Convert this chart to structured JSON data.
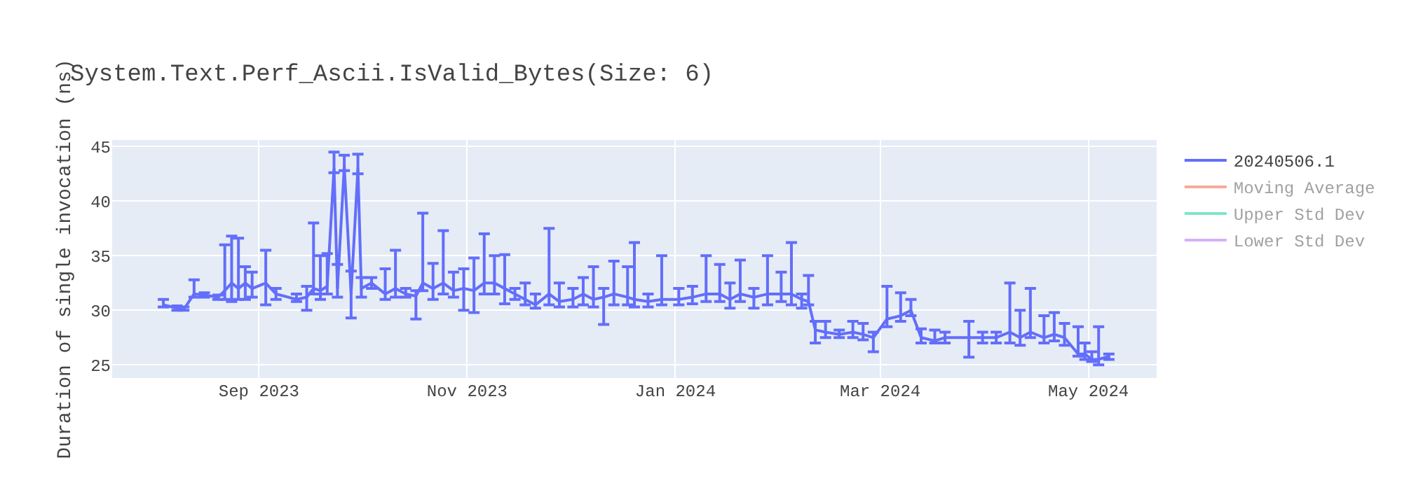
{
  "chart_data": {
    "type": "line",
    "title": "System.Text.Perf_Ascii.IsValid_Bytes(Size: 6)",
    "ylabel": "Duration of single invocation (ns)",
    "x": [
      "2023-08-04",
      "2023-08-08",
      "2023-08-10",
      "2023-08-13",
      "2023-08-16",
      "2023-08-20",
      "2023-08-22",
      "2023-08-24",
      "2023-08-26",
      "2023-08-28",
      "2023-08-30",
      "2023-09-03",
      "2023-09-06",
      "2023-09-12",
      "2023-09-15",
      "2023-09-17",
      "2023-09-19",
      "2023-09-21",
      "2023-09-23",
      "2023-09-24",
      "2023-09-26",
      "2023-09-28",
      "2023-09-30",
      "2023-10-01",
      "2023-10-04",
      "2023-10-08",
      "2023-10-11",
      "2023-10-14",
      "2023-10-17",
      "2023-10-19",
      "2023-10-22",
      "2023-10-25",
      "2023-10-28",
      "2023-10-31",
      "2023-11-03",
      "2023-11-06",
      "2023-11-09",
      "2023-11-12",
      "2023-11-15",
      "2023-11-18",
      "2023-11-21",
      "2023-11-25",
      "2023-11-28",
      "2023-12-02",
      "2023-12-05",
      "2023-12-08",
      "2023-12-11",
      "2023-12-14",
      "2023-12-18",
      "2023-12-20",
      "2023-12-24",
      "2023-12-28",
      "2024-01-02",
      "2024-01-06",
      "2024-01-10",
      "2024-01-14",
      "2024-01-17",
      "2024-01-20",
      "2024-01-24",
      "2024-01-28",
      "2024-02-01",
      "2024-02-04",
      "2024-02-07",
      "2024-02-09",
      "2024-02-11",
      "2024-02-14",
      "2024-02-18",
      "2024-02-22",
      "2024-02-25",
      "2024-02-28",
      "2024-03-03",
      "2024-03-07",
      "2024-03-10",
      "2024-03-13",
      "2024-03-17",
      "2024-03-20",
      "2024-03-27",
      "2024-03-31",
      "2024-04-04",
      "2024-04-08",
      "2024-04-11",
      "2024-04-14",
      "2024-04-18",
      "2024-04-21",
      "2024-04-24",
      "2024-04-28",
      "2024-04-30",
      "2024-05-02",
      "2024-05-04",
      "2024-05-07"
    ],
    "series": [
      {
        "name": "20240506.1",
        "color": "#636efa",
        "values": [
          30.5,
          30.2,
          30.1,
          31.5,
          31.4,
          31.2,
          31.8,
          32.5,
          32.0,
          32.5,
          32.0,
          32.5,
          31.5,
          31.0,
          31.2,
          32.0,
          31.8,
          32.2,
          43.0,
          32.0,
          43.2,
          31.5,
          43.0,
          32.0,
          32.5,
          31.5,
          32.0,
          31.5,
          31.3,
          32.5,
          32.0,
          32.5,
          31.8,
          32.0,
          31.8,
          32.5,
          32.5,
          32.0,
          31.5,
          31.0,
          30.5,
          31.5,
          30.8,
          31.0,
          31.5,
          31.0,
          31.2,
          31.5,
          31.2,
          31.0,
          30.8,
          31.0,
          31.0,
          31.2,
          31.5,
          31.5,
          31.0,
          31.5,
          31.2,
          31.5,
          31.5,
          31.5,
          31.0,
          30.8,
          28.2,
          28.0,
          27.8,
          28.0,
          27.8,
          27.5,
          29.2,
          29.5,
          30.0,
          27.5,
          27.2,
          27.5,
          27.5,
          27.5,
          27.5,
          28.0,
          27.5,
          28.0,
          27.5,
          27.8,
          27.5,
          26.0,
          26.0,
          25.5,
          25.5,
          25.8
        ],
        "errors": [
          [
            30.3,
            31.0
          ],
          [
            30.0,
            30.4
          ],
          [
            30.0,
            30.3
          ],
          [
            31.2,
            32.8
          ],
          [
            31.2,
            31.6
          ],
          [
            31.0,
            31.4
          ],
          [
            31.0,
            36.0
          ],
          [
            30.8,
            36.8
          ],
          [
            31.0,
            36.6
          ],
          [
            31.0,
            34.0
          ],
          [
            31.2,
            33.5
          ],
          [
            30.5,
            35.5
          ],
          [
            31.0,
            32.0
          ],
          [
            30.8,
            31.5
          ],
          [
            30.0,
            32.2
          ],
          [
            31.5,
            38.0
          ],
          [
            31.0,
            35.0
          ],
          [
            31.5,
            35.2
          ],
          [
            42.6,
            44.5
          ],
          [
            31.2,
            34.2
          ],
          [
            42.8,
            44.2
          ],
          [
            29.3,
            33.6
          ],
          [
            42.5,
            44.3
          ],
          [
            31.2,
            33.0
          ],
          [
            32.0,
            33.0
          ],
          [
            31.0,
            33.8
          ],
          [
            31.2,
            35.5
          ],
          [
            31.2,
            32.0
          ],
          [
            29.2,
            31.8
          ],
          [
            31.8,
            38.9
          ],
          [
            31.0,
            34.3
          ],
          [
            31.5,
            37.3
          ],
          [
            31.2,
            33.5
          ],
          [
            30.0,
            33.8
          ],
          [
            29.8,
            34.8
          ],
          [
            31.5,
            37.0
          ],
          [
            31.5,
            35.0
          ],
          [
            30.6,
            35.1
          ],
          [
            31.0,
            32.0
          ],
          [
            30.5,
            32.5
          ],
          [
            30.2,
            31.5
          ],
          [
            30.5,
            37.5
          ],
          [
            30.3,
            32.5
          ],
          [
            30.3,
            32.0
          ],
          [
            30.5,
            33.0
          ],
          [
            30.3,
            34.0
          ],
          [
            28.7,
            32.0
          ],
          [
            30.5,
            34.5
          ],
          [
            30.5,
            34.0
          ],
          [
            30.3,
            36.2
          ],
          [
            30.3,
            31.5
          ],
          [
            30.5,
            35.0
          ],
          [
            30.5,
            32.0
          ],
          [
            30.6,
            32.2
          ],
          [
            30.8,
            35.0
          ],
          [
            30.8,
            34.2
          ],
          [
            30.2,
            32.5
          ],
          [
            30.8,
            34.6
          ],
          [
            30.2,
            32.0
          ],
          [
            30.5,
            35.0
          ],
          [
            30.8,
            33.5
          ],
          [
            30.5,
            36.2
          ],
          [
            30.2,
            31.5
          ],
          [
            30.5,
            33.2
          ],
          [
            27.0,
            29.0
          ],
          [
            27.5,
            29.0
          ],
          [
            27.5,
            28.2
          ],
          [
            27.5,
            29.0
          ],
          [
            27.3,
            28.8
          ],
          [
            26.2,
            28.0
          ],
          [
            28.5,
            32.2
          ],
          [
            29.0,
            31.6
          ],
          [
            29.5,
            31.0
          ],
          [
            27.0,
            28.3
          ],
          [
            27.0,
            28.2
          ],
          [
            27.0,
            28.0
          ],
          [
            25.7,
            29.0
          ],
          [
            27.0,
            28.0
          ],
          [
            27.0,
            28.0
          ],
          [
            27.0,
            32.5
          ],
          [
            26.8,
            30.0
          ],
          [
            27.5,
            32.0
          ],
          [
            27.0,
            29.5
          ],
          [
            27.2,
            29.8
          ],
          [
            26.8,
            28.8
          ],
          [
            25.8,
            28.5
          ],
          [
            25.5,
            27.0
          ],
          [
            25.3,
            26.2
          ],
          [
            25.0,
            28.5
          ],
          [
            25.5,
            26.0
          ]
        ]
      },
      {
        "name": "Moving Average",
        "color": "#ef553b",
        "values": [
          null,
          null,
          null,
          null,
          null,
          null,
          null,
          null,
          null,
          null,
          null,
          null,
          null,
          null,
          null,
          null,
          null,
          null,
          null,
          null,
          null,
          null,
          null,
          null,
          null,
          null,
          null,
          null,
          null,
          null,
          null,
          null,
          null,
          null,
          null,
          null,
          null,
          null,
          null,
          null,
          null,
          null,
          null,
          null,
          null,
          null,
          null,
          null,
          null,
          null,
          null,
          null,
          null,
          null,
          null,
          null,
          null,
          null,
          null,
          null,
          null,
          null,
          null,
          null,
          null,
          null,
          null,
          null,
          null,
          null,
          null,
          null,
          null,
          null,
          null,
          null,
          null,
          null,
          null,
          null,
          null,
          null,
          null,
          null,
          null,
          null,
          null,
          null,
          null,
          null
        ]
      },
      {
        "name": "Upper Std Dev",
        "color": "#00cc96",
        "values": [
          null,
          null,
          null,
          null,
          null,
          null,
          null,
          null,
          null,
          null,
          null,
          null,
          null,
          null,
          null,
          null,
          null,
          null,
          null,
          null,
          null,
          null,
          null,
          null,
          null,
          null,
          null,
          null,
          null,
          null,
          null,
          null,
          null,
          null,
          null,
          null,
          null,
          null,
          null,
          null,
          null,
          null,
          null,
          null,
          null,
          null,
          null,
          null,
          null,
          null,
          null,
          null,
          null,
          null,
          null,
          null,
          null,
          null,
          null,
          null,
          null,
          null,
          null,
          null,
          null,
          null,
          null,
          null,
          null,
          null,
          null,
          null,
          null,
          null,
          null,
          null,
          null,
          null,
          null,
          null,
          null,
          null,
          null,
          null,
          null,
          null,
          null,
          null,
          null,
          null
        ]
      },
      {
        "name": "Lower Std Dev",
        "color": "#ab63fa",
        "values": [
          null,
          null,
          null,
          null,
          null,
          null,
          null,
          null,
          null,
          null,
          null,
          null,
          null,
          null,
          null,
          null,
          null,
          null,
          null,
          null,
          null,
          null,
          null,
          null,
          null,
          null,
          null,
          null,
          null,
          null,
          null,
          null,
          null,
          null,
          null,
          null,
          null,
          null,
          null,
          null,
          null,
          null,
          null,
          null,
          null,
          null,
          null,
          null,
          null,
          null,
          null,
          null,
          null,
          null,
          null,
          null,
          null,
          null,
          null,
          null,
          null,
          null,
          null,
          null,
          null,
          null,
          null,
          null,
          null,
          null,
          null,
          null,
          null,
          null,
          null,
          null,
          null,
          null,
          null,
          null,
          null,
          null,
          null,
          null,
          null,
          null,
          null,
          null,
          null,
          null
        ]
      }
    ],
    "xlim": [
      "2023-07-20",
      "2024-05-21"
    ],
    "xticks": [
      {
        "value": "2023-09-01",
        "label": "Sep 2023"
      },
      {
        "value": "2023-11-01",
        "label": "Nov 2023"
      },
      {
        "value": "2024-01-01",
        "label": "Jan 2024"
      },
      {
        "value": "2024-03-01",
        "label": "Mar 2024"
      },
      {
        "value": "2024-05-01",
        "label": "May 2024"
      }
    ],
    "ylim": [
      23.8,
      45.6
    ],
    "yticks": [
      25,
      30,
      35,
      40,
      45
    ],
    "grid": true,
    "legend": "top right",
    "marker": "none",
    "line_style": "solid"
  }
}
